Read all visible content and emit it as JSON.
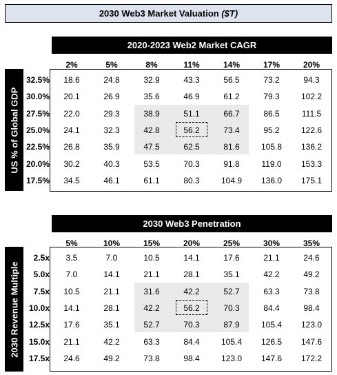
{
  "title": {
    "main": "2030 Web3 Market Valuation",
    "unit": "($T)"
  },
  "table1": {
    "col_header": "2020-2023 Web2 Market CAGR",
    "row_header": "US % of Global GDP",
    "cols": [
      "2%",
      "5%",
      "8%",
      "11%",
      "14%",
      "17%",
      "20%"
    ],
    "rows": [
      "32.5%",
      "30.0%",
      "27.5%",
      "25.0%",
      "22.5%",
      "20.0%",
      "17.5%"
    ],
    "values": [
      [
        "18.6",
        "24.8",
        "32.9",
        "43.3",
        "56.5",
        "73.2",
        "94.3"
      ],
      [
        "20.1",
        "26.9",
        "35.6",
        "46.9",
        "61.2",
        "79.3",
        "102.2"
      ],
      [
        "22.0",
        "29.3",
        "38.9",
        "51.1",
        "66.7",
        "86.5",
        "111.5"
      ],
      [
        "24.1",
        "32.3",
        "42.8",
        "56.2",
        "73.4",
        "95.2",
        "122.6"
      ],
      [
        "26.8",
        "35.9",
        "47.5",
        "62.5",
        "81.6",
        "105.8",
        "136.2"
      ],
      [
        "30.2",
        "40.3",
        "53.5",
        "70.3",
        "91.8",
        "119.0",
        "153.3"
      ],
      [
        "34.5",
        "46.1",
        "61.1",
        "80.3",
        "104.9",
        "136.0",
        "175.1"
      ]
    ]
  },
  "table2": {
    "col_header": "2030 Web3 Penetration",
    "row_header": "2030 Revenue Multiple",
    "cols": [
      "5%",
      "10%",
      "15%",
      "20%",
      "25%",
      "30%",
      "35%"
    ],
    "rows": [
      "2.5x",
      "5.0x",
      "7.5x",
      "10.0x",
      "12.5x",
      "15.0x",
      "17.5x"
    ],
    "values": [
      [
        "3.5",
        "7.0",
        "10.5",
        "14.1",
        "17.6",
        "21.1",
        "24.6"
      ],
      [
        "7.0",
        "14.1",
        "21.1",
        "28.1",
        "35.1",
        "42.2",
        "49.2"
      ],
      [
        "10.5",
        "21.1",
        "31.6",
        "42.2",
        "52.7",
        "63.3",
        "73.8"
      ],
      [
        "14.1",
        "28.1",
        "42.2",
        "56.2",
        "70.3",
        "84.4",
        "98.4"
      ],
      [
        "17.6",
        "35.1",
        "52.7",
        "70.3",
        "87.9",
        "105.4",
        "123.0"
      ],
      [
        "21.1",
        "42.2",
        "63.3",
        "84.4",
        "105.4",
        "126.5",
        "147.6"
      ],
      [
        "24.6",
        "49.2",
        "73.8",
        "98.4",
        "123.0",
        "147.6",
        "172.2"
      ]
    ]
  }
}
